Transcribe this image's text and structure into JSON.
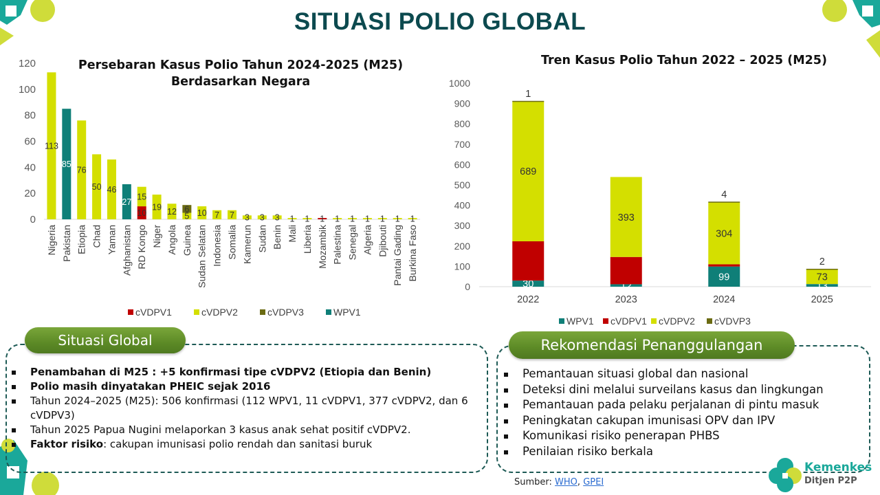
{
  "title": "SITUASI POLIO GLOBAL",
  "colors": {
    "WPV1": "#0f7f78",
    "cVDPV1": "#c00000",
    "cVDPV2": "#d4df00",
    "cVDPV3": "#6b6b12",
    "title": "#0c4a4f",
    "accent_green": "#6a9a2e"
  },
  "chart_data": [
    {
      "type": "bar",
      "stacked": true,
      "title": "Persebaran Kasus Polio Tahun 2024-2025 (M25)",
      "subtitle": "Berdasarkan Negara",
      "xlabel": "",
      "ylabel": "",
      "ylim": [
        0,
        120
      ],
      "yticks": [
        "0",
        "20",
        "40",
        "60",
        "80",
        "100",
        "120"
      ],
      "grid": false,
      "legend": "bottom",
      "legend_order": [
        "cVDPV1",
        "cVDPV2",
        "cVDPV3",
        "WPV1"
      ],
      "categories": [
        "Nigeria",
        "Pakistan",
        "Etiopia",
        "Chad",
        "Yaman",
        "Afghanistan",
        "RD Kongo",
        "Niger",
        "Angola",
        "Guinea",
        "Sudan Selatan",
        "Indonesia",
        "Somalia",
        "Kamerun",
        "Sudan",
        "Benin",
        "Mali",
        "Liberia",
        "Mozambik",
        "Palestina",
        "Senegal",
        "Algeria",
        "Djibouti",
        "Pantai Gading",
        "Burkina Faso"
      ],
      "series": [
        {
          "name": "WPV1",
          "values": [
            0,
            85,
            0,
            0,
            0,
            27,
            0,
            0,
            0,
            0,
            0,
            0,
            0,
            0,
            0,
            0,
            0,
            0,
            0,
            0,
            0,
            0,
            0,
            0,
            0
          ]
        },
        {
          "name": "cVDPV1",
          "values": [
            0,
            0,
            0,
            0,
            0,
            0,
            10,
            0,
            0,
            0,
            0,
            0,
            0,
            0,
            0,
            0,
            0,
            0,
            1,
            0,
            0,
            0,
            0,
            0,
            0
          ]
        },
        {
          "name": "cVDPV2",
          "values": [
            113,
            0,
            76,
            50,
            46,
            0,
            15,
            19,
            12,
            5,
            10,
            7,
            7,
            3,
            3,
            3,
            1,
            1,
            0,
            1,
            1,
            1,
            1,
            1,
            1
          ]
        },
        {
          "name": "cVDPV3",
          "values": [
            0,
            0,
            0,
            0,
            0,
            0,
            0,
            0,
            0,
            6,
            0,
            0,
            0,
            0,
            0,
            0,
            0,
            0,
            0,
            0,
            0,
            0,
            0,
            0,
            0
          ]
        }
      ]
    },
    {
      "type": "bar",
      "stacked": true,
      "title": "Tren Kasus Polio Tahun 2022 – 2025 (M25)",
      "xlabel": "",
      "ylabel": "",
      "ylim": [
        0,
        1000
      ],
      "yticks": [
        "0",
        "100",
        "200",
        "300",
        "400",
        "500",
        "600",
        "700",
        "800",
        "900",
        "1000"
      ],
      "grid": false,
      "legend": "bottom",
      "legend_order": [
        "WPV1",
        "cVDPV1",
        "cVDPV2",
        "cVDVP3"
      ],
      "categories": [
        "2022",
        "2023",
        "2024",
        "2025"
      ],
      "series": [
        {
          "name": "WPV1",
          "values": [
            30,
            12,
            99,
            13
          ]
        },
        {
          "name": "cVDPV1",
          "values": [
            193,
            134,
            11,
            0
          ]
        },
        {
          "name": "cVDPV2",
          "values": [
            689,
            393,
            304,
            73
          ]
        },
        {
          "name": "cVDVP3",
          "values": [
            1,
            0,
            4,
            2
          ]
        }
      ]
    }
  ],
  "situasi": {
    "heading": "Situasi Global",
    "items": [
      {
        "bold": "Penambahan di M25 : +5 konfirmasi tipe cVDPV2 (Etiopia dan Benin)",
        "text": ""
      },
      {
        "bold": "Polio masih dinyatakan PHEIC sejak 2016",
        "text": ""
      },
      {
        "bold": "",
        "text": "Tahun 2024–2025 (M25): 506 konfirmasi (112 WPV1, 11 cVDPV1, 377 cVDPV2, dan 6 cVDPV3)"
      },
      {
        "bold": "",
        "text": "Tahun 2025 Papua Nugini melaporkan 3 kasus anak sehat positif cVDPV2."
      },
      {
        "bold": "Faktor risiko",
        "text": ": cakupan imunisasi polio rendah dan sanitasi buruk"
      }
    ]
  },
  "rekomendasi": {
    "heading": "Rekomendasi Penanggulangan",
    "items": [
      "Pemantauan situasi global dan nasional",
      "Deteksi dini melalui surveilans kasus dan lingkungan",
      "Pemantauan pada pelaku perjalanan di pintu masuk",
      "Peningkatan cakupan imunisasi OPV dan IPV",
      "Komunikasi risiko penerapan PHBS",
      "Penilaian risiko berkala"
    ]
  },
  "source": {
    "label": "Sumber: ",
    "links": [
      "WHO",
      "GPEI"
    ],
    "sep": ", "
  },
  "logo": {
    "name": "Kemenkes",
    "sub": "Ditjen P2P"
  }
}
